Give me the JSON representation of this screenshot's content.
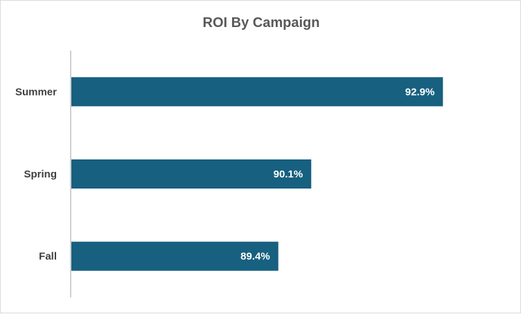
{
  "chart_data": {
    "type": "bar",
    "orientation": "horizontal",
    "title": "ROI By Campaign",
    "categories": [
      "Summer",
      "Spring",
      "Fall"
    ],
    "values": [
      92.9,
      90.1,
      89.4
    ],
    "data_labels": [
      "92.9%",
      "90.1%",
      "89.4%"
    ],
    "unit": "%",
    "xlim": [
      85,
      94
    ],
    "xlabel": "",
    "ylabel": "",
    "grid": false,
    "legend": "none",
    "bar_color": "#17607f"
  }
}
